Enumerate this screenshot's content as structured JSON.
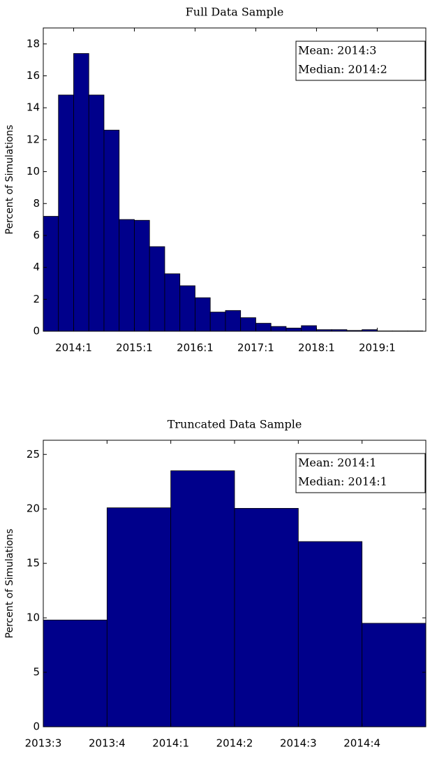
{
  "chart_data": [
    {
      "type": "histogram",
      "title": "Full Data Sample",
      "ylabel": "Percent of Simulations",
      "bins": [
        2013.5,
        2013.75,
        2014.0,
        2014.25,
        2014.5,
        2014.75,
        2015.0,
        2015.25,
        2015.5,
        2015.75,
        2016.0,
        2016.25,
        2016.5,
        2016.75,
        2017.0,
        2017.25,
        2017.5,
        2017.75,
        2018.0,
        2018.25,
        2018.5,
        2018.75,
        2019.0,
        2019.25,
        2019.5,
        2019.75
      ],
      "values": [
        7.2,
        14.8,
        17.4,
        14.8,
        12.6,
        7.0,
        6.95,
        5.3,
        3.6,
        2.85,
        2.1,
        1.2,
        1.3,
        0.85,
        0.5,
        0.3,
        0.2,
        0.35,
        0.1,
        0.1,
        0.05,
        0.1,
        0.02,
        0.02,
        0.02
      ],
      "color": "#00008b",
      "xlim": [
        2013.5,
        2019.8
      ],
      "ylim": [
        0,
        19
      ],
      "xticks": [
        {
          "value": 2014.0,
          "label": "2014:1"
        },
        {
          "value": 2015.0,
          "label": "2015:1"
        },
        {
          "value": 2016.0,
          "label": "2016:1"
        },
        {
          "value": 2017.0,
          "label": "2017:1"
        },
        {
          "value": 2018.0,
          "label": "2018:1"
        },
        {
          "value": 2019.0,
          "label": "2019:1"
        }
      ],
      "yticks": [
        0,
        2,
        4,
        6,
        8,
        10,
        12,
        14,
        16,
        18
      ],
      "annotations": [
        "Mean: 2014:3",
        "Median: 2014:2"
      ]
    },
    {
      "type": "histogram",
      "title": "Truncated Data Sample",
      "ylabel": "Percent of Simulations",
      "bins": [
        2013.5,
        2013.75,
        2014.0,
        2014.25,
        2014.5,
        2014.75,
        2015.0
      ],
      "values": [
        9.8,
        20.1,
        23.5,
        20.05,
        17.0,
        9.5
      ],
      "color": "#00008b",
      "xlim": [
        2013.5,
        2015.0
      ],
      "ylim": [
        0,
        26.3
      ],
      "xticks": [
        {
          "value": 2013.5,
          "label": "2013:3"
        },
        {
          "value": 2013.75,
          "label": "2013:4"
        },
        {
          "value": 2014.0,
          "label": "2014:1"
        },
        {
          "value": 2014.25,
          "label": "2014:2"
        },
        {
          "value": 2014.5,
          "label": "2014:3"
        },
        {
          "value": 2014.75,
          "label": "2014:4"
        }
      ],
      "yticks": [
        0,
        5,
        10,
        15,
        20,
        25
      ],
      "annotations": [
        "Mean: 2014:1",
        "Median: 2014:1"
      ]
    }
  ]
}
